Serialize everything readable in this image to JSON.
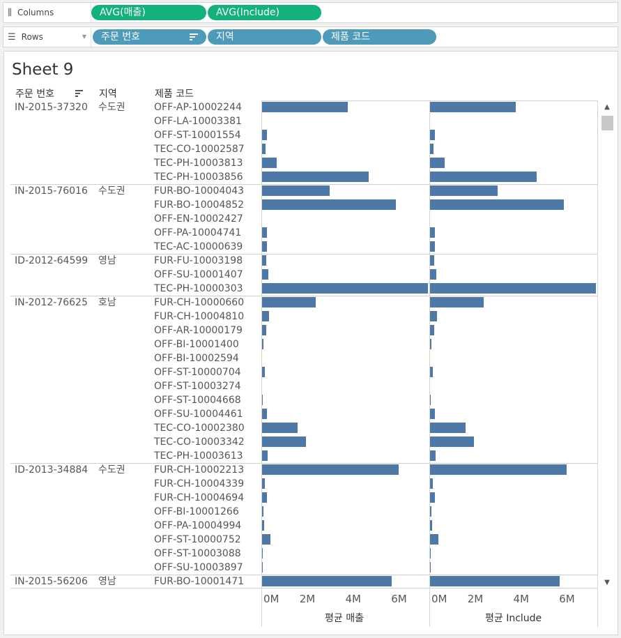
{
  "columns_shelf": {
    "label": "Columns",
    "icon": "bars-icon",
    "pills": [
      "AVG(매출)",
      "AVG(Include)"
    ]
  },
  "rows_shelf": {
    "label": "Rows",
    "icon": "list-icon",
    "pills": [
      "주문 번호",
      "지역",
      "제품 코드"
    ]
  },
  "sheet": {
    "title": "Sheet 9"
  },
  "headers": {
    "order": "주문 번호",
    "region": "지역",
    "product": "제품 코드"
  },
  "colors": {
    "bar": "#4e79a7",
    "measure_pill": "#12b27a",
    "dimension_pill": "#4d9bb8"
  },
  "chart_data": {
    "type": "bar",
    "orientation": "horizontal",
    "series": [
      {
        "name": "평균 매출",
        "axis_title": "평균 매출"
      },
      {
        "name": "평균 Include",
        "axis_title": "평균 Include"
      }
    ],
    "x_ticks": [
      "0M",
      "2M",
      "4M",
      "6M"
    ],
    "xlim_millions": [
      0,
      7.3
    ],
    "groups": [
      {
        "order": "IN-2015-37320",
        "region": "수도권",
        "rows": [
          {
            "product": "OFF-AP-10002244",
            "avg_sales": 3.75,
            "avg_include": 3.75
          },
          {
            "product": "OFF-LA-10003381",
            "avg_sales": 0,
            "avg_include": 0
          },
          {
            "product": "OFF-ST-10001554",
            "avg_sales": 0.22,
            "avg_include": 0.22
          },
          {
            "product": "TEC-CO-10002587",
            "avg_sales": 0.15,
            "avg_include": 0.15
          },
          {
            "product": "TEC-PH-10003813",
            "avg_sales": 0.65,
            "avg_include": 0.65
          },
          {
            "product": "TEC-PH-10003856",
            "avg_sales": 4.65,
            "avg_include": 4.65
          }
        ]
      },
      {
        "order": "IN-2015-76016",
        "region": "수도권",
        "rows": [
          {
            "product": "FUR-BO-10004043",
            "avg_sales": 2.95,
            "avg_include": 2.95
          },
          {
            "product": "FUR-BO-10004852",
            "avg_sales": 5.85,
            "avg_include": 5.85
          },
          {
            "product": "OFF-EN-10002427",
            "avg_sales": 0,
            "avg_include": 0
          },
          {
            "product": "OFF-PA-10004741",
            "avg_sales": 0.2,
            "avg_include": 0.2
          },
          {
            "product": "TEC-AC-10000639",
            "avg_sales": 0.22,
            "avg_include": 0.22
          }
        ]
      },
      {
        "order": "ID-2012-64599",
        "region": "영남",
        "rows": [
          {
            "product": "FUR-FU-10003198",
            "avg_sales": 0.18,
            "avg_include": 0.18
          },
          {
            "product": "OFF-SU-10001407",
            "avg_sales": 0.27,
            "avg_include": 0.27
          },
          {
            "product": "TEC-PH-10000303",
            "avg_sales": 7.25,
            "avg_include": 7.25
          }
        ]
      },
      {
        "order": "IN-2012-76625",
        "region": "호남",
        "rows": [
          {
            "product": "FUR-CH-10000660",
            "avg_sales": 2.35,
            "avg_include": 2.35
          },
          {
            "product": "FUR-CH-10004810",
            "avg_sales": 0.3,
            "avg_include": 0.3
          },
          {
            "product": "OFF-AR-10000179",
            "avg_sales": 0.18,
            "avg_include": 0.18
          },
          {
            "product": "OFF-BI-10001400",
            "avg_sales": 0.05,
            "avg_include": 0.05
          },
          {
            "product": "OFF-BI-10002594",
            "avg_sales": 0,
            "avg_include": 0
          },
          {
            "product": "OFF-ST-10000704",
            "avg_sales": 0.12,
            "avg_include": 0.12
          },
          {
            "product": "OFF-ST-10003274",
            "avg_sales": 0,
            "avg_include": 0
          },
          {
            "product": "OFF-ST-10004668",
            "avg_sales": 0.03,
            "avg_include": 0.03
          },
          {
            "product": "OFF-SU-10004461",
            "avg_sales": 0.22,
            "avg_include": 0.22
          },
          {
            "product": "TEC-CO-10002380",
            "avg_sales": 1.55,
            "avg_include": 1.55
          },
          {
            "product": "TEC-CO-10003342",
            "avg_sales": 1.92,
            "avg_include": 1.92
          },
          {
            "product": "TEC-PH-10003613",
            "avg_sales": 0.25,
            "avg_include": 0.25
          }
        ]
      },
      {
        "order": "ID-2013-34884",
        "region": "수도권",
        "rows": [
          {
            "product": "FUR-CH-10002213",
            "avg_sales": 5.95,
            "avg_include": 5.95
          },
          {
            "product": "FUR-CH-10004339",
            "avg_sales": 0.12,
            "avg_include": 0.12
          },
          {
            "product": "FUR-CH-10004694",
            "avg_sales": 0.22,
            "avg_include": 0.22
          },
          {
            "product": "OFF-BI-10001266",
            "avg_sales": 0.06,
            "avg_include": 0.06
          },
          {
            "product": "OFF-PA-10004994",
            "avg_sales": 0.08,
            "avg_include": 0.08
          },
          {
            "product": "OFF-ST-10000752",
            "avg_sales": 0.35,
            "avg_include": 0.35
          },
          {
            "product": "OFF-ST-10003088",
            "avg_sales": 0.03,
            "avg_include": 0.03
          },
          {
            "product": "OFF-SU-10003897",
            "avg_sales": 0.03,
            "avg_include": 0.03
          }
        ]
      },
      {
        "order": "IN-2015-56206",
        "region": "영남",
        "rows": [
          {
            "product": "FUR-BO-10001471",
            "avg_sales": 5.65,
            "avg_include": 5.65
          }
        ]
      }
    ]
  }
}
